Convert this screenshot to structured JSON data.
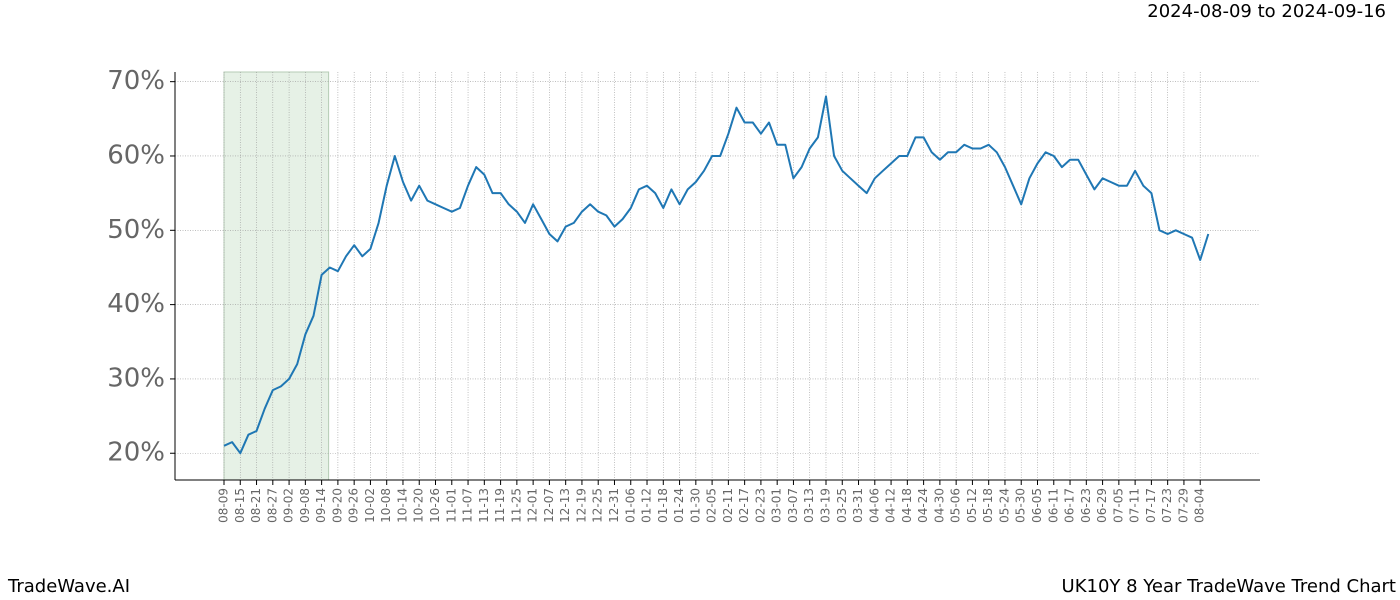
{
  "chart_data": {
    "type": "line",
    "date_range": "2024-08-09 to 2024-09-16",
    "brand": "TradeWave.AI",
    "title": "UK10Y 8 Year TradeWave Trend Chart",
    "categories": [
      "08-09",
      null,
      "08-15",
      null,
      "08-21",
      null,
      "08-27",
      null,
      "09-02",
      null,
      "09-08",
      null,
      "09-14",
      null,
      "09-20",
      null,
      "09-26",
      null,
      "10-02",
      null,
      "10-08",
      null,
      "10-14",
      null,
      "10-20",
      null,
      "10-26",
      null,
      "11-01",
      null,
      "11-07",
      null,
      "11-13",
      null,
      "11-19",
      null,
      "11-25",
      null,
      "12-01",
      null,
      "12-07",
      null,
      "12-13",
      null,
      "12-19",
      null,
      "12-25",
      null,
      "12-31",
      null,
      "01-06",
      null,
      "01-12",
      null,
      "01-18",
      null,
      "01-24",
      null,
      "01-30",
      null,
      "02-05",
      null,
      "02-11",
      null,
      "02-17",
      null,
      "02-23",
      null,
      "03-01",
      null,
      "03-07",
      null,
      "03-13",
      null,
      "03-19",
      null,
      "03-25",
      null,
      "03-31",
      null,
      "04-06",
      null,
      "04-12",
      null,
      "04-18",
      null,
      "04-24",
      null,
      "04-30",
      null,
      "05-06",
      null,
      "05-12",
      null,
      "05-18",
      null,
      "05-24",
      null,
      "05-30",
      null,
      "06-05",
      null,
      "06-11",
      null,
      "06-17",
      null,
      "06-23",
      null,
      "06-29",
      null,
      "07-05",
      null,
      "07-11",
      null,
      "07-17",
      null,
      "07-23",
      null,
      "07-29",
      null,
      "08-04",
      null
    ],
    "values": [
      21,
      21.5,
      20,
      22.5,
      23,
      26,
      28.5,
      29,
      30,
      32,
      36,
      38.5,
      44,
      45,
      44.5,
      46.5,
      48,
      46.5,
      47.5,
      51,
      56,
      60,
      56.5,
      54,
      56,
      54,
      53.5,
      53,
      52.5,
      53,
      56,
      58.5,
      57.5,
      55,
      55,
      53.5,
      52.5,
      51,
      53.5,
      51.5,
      49.5,
      48.5,
      50.5,
      51,
      52.5,
      53.5,
      52.5,
      52,
      50.5,
      51.5,
      53,
      55.5,
      56,
      55,
      53,
      55.5,
      53.5,
      55.5,
      56.5,
      58,
      60,
      60,
      63,
      66.5,
      64.5,
      64.5,
      63,
      64.5,
      61.5,
      61.5,
      57,
      58.5,
      61,
      62.5,
      68,
      60,
      58,
      57,
      56,
      55,
      57,
      58,
      59,
      60,
      60,
      62.5,
      62.5,
      60.5,
      59.5,
      60.5,
      60.5,
      61.5,
      61,
      61,
      61.5,
      60.5,
      58.5,
      56,
      53.5,
      57,
      59,
      60.5,
      60,
      58.5,
      59.5,
      59.5,
      57.5,
      55.5,
      57,
      56.5,
      56,
      56,
      58,
      56,
      55,
      50,
      49.5,
      50,
      49.5,
      49,
      46,
      49.5
    ],
    "color": "#1f77b4",
    "highlight": [
      "08-09",
      "09-14"
    ],
    "highlight_color": "#e6f1e6",
    "ylim": [
      16.4,
      71.3
    ],
    "yticks": [
      {
        "value": 20,
        "label": "20%"
      },
      {
        "value": 30,
        "label": "30%"
      },
      {
        "value": 40,
        "label": "40%"
      },
      {
        "value": 50,
        "label": "50%"
      },
      {
        "value": 60,
        "label": "60%"
      },
      {
        "value": 70,
        "label": "70%"
      }
    ],
    "grid": true
  }
}
